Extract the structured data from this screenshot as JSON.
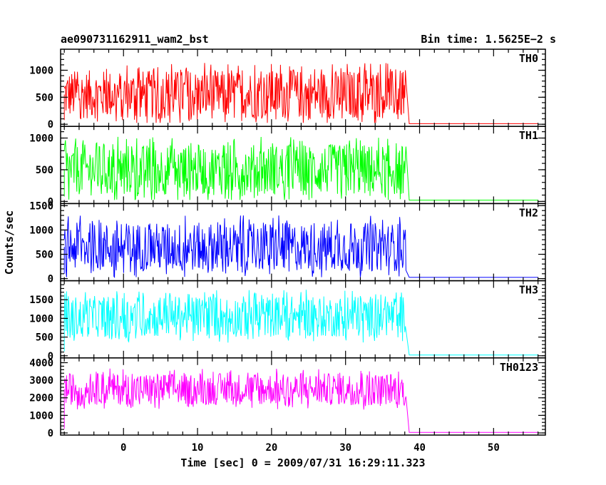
{
  "chart_data": {
    "type": "line",
    "title": "ae090731162911_wam2_bst",
    "subtitle": "Bin time: 1.5625E−2 s",
    "xlabel": "Time [sec] 0 = 2009/07/31 16:29:11.323",
    "ylabel": "Counts/sec",
    "xlim": [
      -8.5,
      57
    ],
    "x_ticks": [
      0,
      10,
      20,
      30,
      40,
      50
    ],
    "burst_end_x": 38.2,
    "start_x": -8,
    "series": [
      {
        "name": "TH0",
        "color": "#ff0000",
        "ylim": [
          0,
          1350
        ],
        "yticks": [
          0,
          500,
          1000
        ],
        "mean": 550,
        "amp": 450,
        "baseline": 10
      },
      {
        "name": "TH1",
        "color": "#00ff00",
        "ylim": [
          0,
          1150
        ],
        "yticks": [
          0,
          500,
          1000
        ],
        "mean": 500,
        "amp": 400,
        "baseline": 20
      },
      {
        "name": "TH2",
        "color": "#0000ff",
        "ylim": [
          0,
          1500
        ],
        "yticks": [
          0,
          500,
          1000,
          1500
        ],
        "mean": 650,
        "amp": 500,
        "baseline": 25
      },
      {
        "name": "TH3",
        "color": "#00ffff",
        "ylim": [
          0,
          1950
        ],
        "yticks": [
          0,
          500,
          1000,
          1500
        ],
        "mean": 1050,
        "amp": 550,
        "baseline": 20
      },
      {
        "name": "TH0123",
        "color": "#ff00ff",
        "ylim": [
          0,
          4150
        ],
        "yticks": [
          0,
          1000,
          2000,
          3000,
          4000
        ],
        "mean": 2500,
        "amp": 900,
        "baseline": 30
      }
    ]
  }
}
